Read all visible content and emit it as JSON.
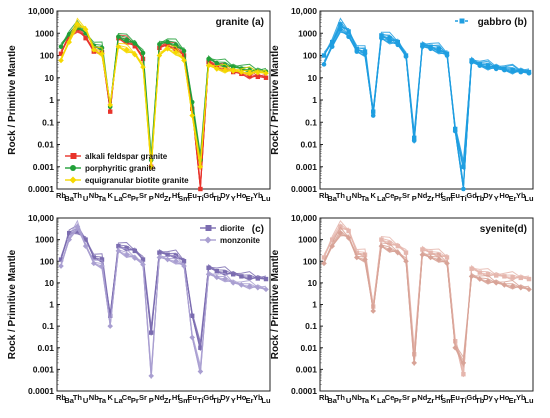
{
  "figure": {
    "shared": {
      "ylabel": "Rock / Primitive  Mantle",
      "elements": [
        "Rb",
        "Ba",
        "Th",
        "U",
        "Nb",
        "Ta",
        "K",
        "La",
        "Ce",
        "Pr",
        "Sr",
        "P",
        "Nd",
        "Zr",
        "Hf",
        "Sm",
        "Eu",
        "Ti",
        "Gd",
        "Tb",
        "Dy",
        "Y",
        "Ho",
        "Er",
        "Yb",
        "Lu"
      ],
      "yticks": [
        "0.0001",
        "0.001",
        "0.01",
        "0.1",
        "1",
        "10",
        "100",
        "1000",
        "10,000"
      ]
    }
  },
  "chart_data": [
    {
      "id": "a",
      "type": "line",
      "scale": "log",
      "ylim": [
        0.0001,
        10000
      ],
      "title": "granite (a)",
      "legend_position": "bottom-left",
      "series": [
        {
          "name": "alkali feldspar granite",
          "color": "#e8332a",
          "marker": "square",
          "values": [
            120,
            700,
            1500,
            600,
            150,
            140,
            0.3,
            600,
            420,
            260,
            70,
            0.001,
            220,
            300,
            200,
            100,
            0.4,
            0.0001,
            50,
            30,
            25,
            18,
            15,
            12,
            11,
            10
          ]
        },
        {
          "name": "porphyritic granite",
          "color": "#21a038",
          "marker": "circle",
          "values": [
            250,
            900,
            2000,
            1000,
            280,
            220,
            0.5,
            700,
            500,
            350,
            130,
            0.002,
            320,
            400,
            300,
            160,
            0.8,
            0.002,
            70,
            45,
            38,
            30,
            26,
            22,
            20,
            19
          ]
        },
        {
          "name": "equigranular biotite granite",
          "color": "#f5d800",
          "marker": "diamond",
          "values": [
            60,
            400,
            2500,
            1500,
            180,
            120,
            0.6,
            250,
            180,
            110,
            30,
            0.001,
            100,
            200,
            140,
            60,
            0.2,
            0.001,
            35,
            25,
            22,
            20,
            18,
            17,
            17,
            16
          ]
        }
      ]
    },
    {
      "id": "b",
      "type": "line",
      "scale": "log",
      "ylim": [
        0.0001,
        10000
      ],
      "title": "gabbro (b)",
      "legend_position": "top-right",
      "series": [
        {
          "name": "",
          "color": "#1f9ee0",
          "marker": "square",
          "values": [
            100,
            400,
            2500,
            1200,
            200,
            150,
            0.3,
            800,
            600,
            400,
            100,
            0.02,
            300,
            250,
            200,
            120,
            0.05,
            0.001,
            60,
            40,
            35,
            30,
            25,
            22,
            20,
            18
          ]
        },
        {
          "name": "",
          "color": "#1f9ee0",
          "marker": "circle",
          "values": [
            40,
            250,
            1500,
            700,
            150,
            120,
            0.2,
            600,
            450,
            300,
            90,
            0.015,
            250,
            200,
            160,
            100,
            0.04,
            0.0001,
            50,
            35,
            30,
            25,
            22,
            20,
            18,
            16
          ]
        }
      ]
    },
    {
      "id": "c",
      "type": "line",
      "scale": "log",
      "ylim": [
        0.0001,
        10000
      ],
      "title": "",
      "legend_position": "top-right",
      "series": [
        {
          "name": "diorite",
          "color": "#7b6cb0",
          "marker": "square",
          "values": [
            120,
            2000,
            2500,
            1000,
            150,
            120,
            0.3,
            500,
            400,
            300,
            120,
            0.05,
            250,
            200,
            180,
            100,
            0.3,
            0.01,
            50,
            35,
            30,
            25,
            20,
            18,
            16,
            15
          ]
        },
        {
          "name": "monzonite",
          "color": "#a99fd1",
          "marker": "diamond",
          "values": [
            60,
            1000,
            4000,
            500,
            80,
            60,
            0.1,
            300,
            200,
            140,
            70,
            0.0005,
            150,
            120,
            100,
            60,
            0.03,
            0.0008,
            25,
            18,
            15,
            10,
            8,
            7,
            6,
            5
          ]
        }
      ]
    },
    {
      "id": "d",
      "type": "line",
      "scale": "log",
      "ylim": [
        0.0001,
        10000
      ],
      "title": "syenite(d)",
      "legend_position": "",
      "series": [
        {
          "name": "",
          "color": "#e5b6ad",
          "marker": "square",
          "values": [
            150,
            1000,
            4000,
            2500,
            250,
            200,
            0.8,
            1000,
            700,
            500,
            250,
            0.005,
            350,
            250,
            200,
            150,
            0.02,
            0.0006,
            45,
            30,
            25,
            22,
            20,
            18,
            17,
            15
          ]
        },
        {
          "name": "",
          "color": "#d8a397",
          "marker": "diamond",
          "values": [
            80,
            500,
            2000,
            1200,
            150,
            120,
            0.5,
            500,
            350,
            250,
            100,
            0.002,
            200,
            150,
            120,
            80,
            0.01,
            0.002,
            20,
            15,
            12,
            10,
            8,
            7,
            6,
            5
          ]
        }
      ]
    }
  ]
}
